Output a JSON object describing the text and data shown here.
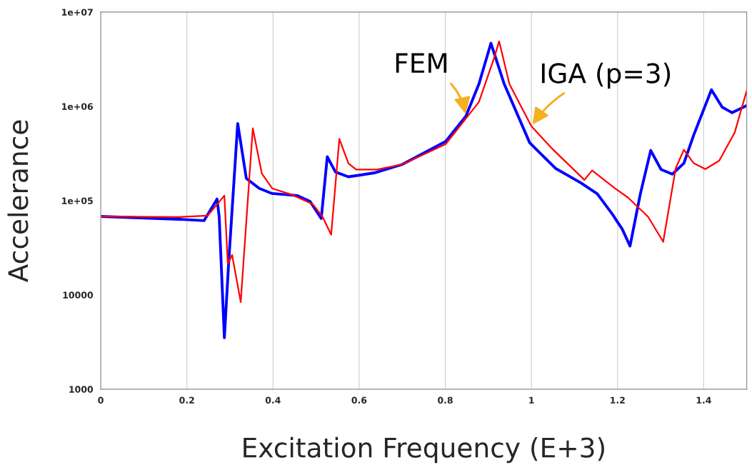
{
  "chart_data": {
    "type": "line",
    "xlabel": "Excitation Frequency (E+3)",
    "ylabel": "Accelerance",
    "xlim": [
      0,
      1.5
    ],
    "xticks": [
      0,
      0.2,
      0.4,
      0.6,
      0.8,
      {
        "value": 1,
        "label": "1"
      },
      1.2,
      1.4
    ],
    "ylim": [
      1000,
      10000000
    ],
    "yticks": [
      {
        "value": 1000,
        "label": "1000"
      },
      {
        "value": 10000,
        "label": "10000"
      },
      {
        "value": 100000,
        "label": "1e+05"
      },
      {
        "value": 1000000,
        "label": "1e+06"
      },
      {
        "value": 10000000,
        "label": "1e+07"
      }
    ],
    "log": "y",
    "grid": "x",
    "legend": false,
    "marker": "none",
    "line_style": "solid",
    "series": [
      {
        "name": "FEM",
        "color": "#0000ff",
        "x": [
          0,
          0.182,
          0.24,
          0.27,
          0.275,
          0.287,
          0.297,
          0.318,
          0.338,
          0.368,
          0.398,
          0.457,
          0.486,
          0.512,
          0.526,
          0.545,
          0.575,
          0.635,
          0.7,
          0.801,
          0.848,
          0.878,
          0.906,
          0.937,
          0.996,
          1.056,
          1.108,
          1.117,
          1.153,
          1.188,
          1.211,
          1.229,
          1.253,
          1.277,
          1.301,
          1.327,
          1.354,
          1.377,
          1.418,
          1.443,
          1.466,
          1.5
        ],
        "values": [
          68000,
          63500,
          61400,
          104000,
          67400,
          3510,
          21900,
          658000,
          172000,
          135000,
          119000,
          113000,
          98200,
          64700,
          292000,
          201000,
          179000,
          197000,
          242000,
          425000,
          790000,
          1720000,
          4670000,
          1720000,
          411000,
          220000,
          161000,
          152000,
          118000,
          71800,
          49800,
          33000,
          118000,
          341000,
          214000,
          191000,
          249000,
          498000,
          1500000,
          982000,
          857000,
          1020000
        ]
      },
      {
        "name": "IGA (p=3)",
        "color": "#ff0000",
        "x": [
          0,
          0.182,
          0.248,
          0.287,
          0.295,
          0.305,
          0.325,
          0.353,
          0.374,
          0.398,
          0.445,
          0.492,
          0.515,
          0.535,
          0.554,
          0.575,
          0.593,
          0.641,
          0.7,
          0.801,
          0.878,
          0.913,
          0.925,
          0.949,
          1.0,
          1.046,
          1.123,
          1.141,
          1.194,
          1.224,
          1.271,
          1.306,
          1.335,
          1.354,
          1.377,
          1.404,
          1.436,
          1.472,
          1.5
        ],
        "values": [
          68000,
          67000,
          69300,
          113000,
          21300,
          26500,
          8400,
          586000,
          194000,
          135000,
          115000,
          92000,
          67400,
          43600,
          452000,
          249000,
          214000,
          214000,
          242000,
          398000,
          1110000,
          3220000,
          4900000,
          1720000,
          615000,
          364000,
          166000,
          209000,
          135000,
          108000,
          67400,
          36600,
          220000,
          347000,
          249000,
          216000,
          265000,
          527000,
          1470000
        ]
      }
    ]
  }
}
